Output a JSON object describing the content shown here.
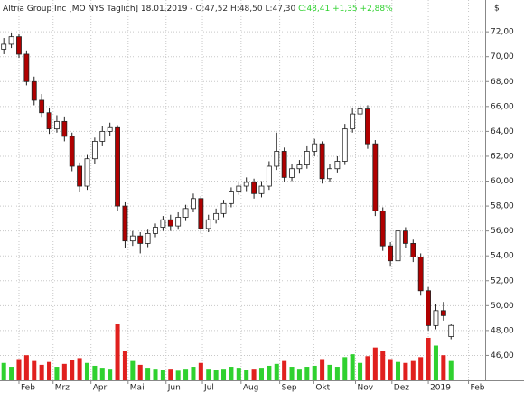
{
  "chart_data": {
    "type": "candlestick",
    "title": "Altria Group Inc [MO NYS  Täglich] 18.01.2019 -",
    "ohlc_label": "O:47,52 H:48,50 L:47,30",
    "change_label": "C:48,41 +1,35 +2,88%",
    "y_unit": "$",
    "up_color": "#2fd12f",
    "down_color": "#e0201e",
    "candle_up_color": "#ffffff",
    "candle_down_color": "#b00000",
    "open": [
      70.6,
      71.0,
      71.6,
      70.2,
      68.0,
      66.5,
      65.5,
      64.2,
      64.8,
      63.6,
      61.2,
      59.6,
      61.8,
      63.2,
      64.0,
      64.3,
      58.0,
      55.2,
      55.6,
      55.0,
      55.8,
      56.3,
      56.9,
      56.4,
      57.1,
      57.8,
      58.6,
      56.2,
      56.9,
      57.4,
      58.2,
      59.2,
      59.6,
      59.9,
      59.0,
      59.6,
      61.2,
      62.4,
      60.3,
      61.0,
      61.3,
      62.4,
      63.0,
      60.2,
      61.0,
      61.6,
      64.2,
      65.4,
      65.8,
      63.0,
      57.6,
      54.8,
      53.6,
      56.0,
      55.0,
      53.9,
      51.2,
      48.4,
      49.6,
      47.52
    ],
    "high": [
      71.5,
      71.9,
      71.8,
      70.5,
      68.4,
      67.0,
      65.9,
      65.3,
      65.2,
      63.9,
      61.5,
      62.1,
      63.5,
      64.4,
      64.7,
      64.5,
      58.3,
      56.0,
      55.9,
      56.1,
      56.6,
      57.2,
      57.3,
      57.5,
      58.1,
      59.0,
      58.8,
      57.3,
      57.8,
      58.5,
      59.5,
      60.0,
      60.3,
      60.2,
      60.0,
      61.6,
      63.9,
      62.7,
      61.4,
      61.7,
      62.8,
      63.4,
      63.2,
      61.4,
      62.0,
      64.6,
      65.9,
      66.2,
      66.1,
      63.3,
      57.9,
      55.1,
      56.4,
      56.3,
      55.3,
      54.2,
      51.5,
      50.1,
      50.3,
      48.5
    ],
    "low": [
      70.2,
      70.7,
      69.9,
      67.7,
      66.1,
      65.1,
      63.8,
      63.9,
      63.2,
      60.8,
      59.1,
      59.3,
      61.4,
      62.8,
      63.6,
      57.6,
      54.6,
      54.8,
      54.2,
      54.7,
      55.5,
      56.0,
      56.0,
      56.1,
      56.8,
      57.5,
      55.8,
      55.9,
      56.6,
      57.1,
      57.9,
      58.9,
      59.2,
      58.6,
      58.7,
      59.3,
      60.9,
      59.9,
      60.0,
      60.6,
      61.0,
      62.0,
      59.8,
      59.9,
      60.7,
      61.3,
      63.9,
      65.0,
      62.6,
      57.2,
      54.4,
      53.2,
      53.3,
      54.6,
      53.5,
      50.8,
      48.0,
      48.1,
      48.8,
      47.3
    ],
    "close": [
      71.0,
      71.6,
      70.2,
      68.0,
      66.5,
      65.5,
      64.2,
      64.8,
      63.6,
      61.2,
      59.6,
      61.8,
      63.2,
      64.0,
      64.3,
      58.0,
      55.2,
      55.6,
      55.0,
      55.8,
      56.3,
      56.9,
      56.4,
      57.1,
      57.8,
      58.6,
      56.2,
      56.9,
      57.4,
      58.2,
      59.2,
      59.6,
      59.9,
      59.0,
      59.6,
      61.2,
      62.4,
      60.3,
      61.0,
      61.3,
      62.4,
      63.0,
      60.2,
      61.0,
      61.6,
      64.2,
      65.4,
      65.8,
      63.0,
      57.6,
      54.8,
      53.6,
      56.0,
      55.0,
      53.9,
      51.2,
      48.4,
      49.6,
      49.2,
      48.41
    ],
    "volume": [
      18,
      14,
      22,
      26,
      20,
      16,
      19,
      14,
      17,
      21,
      23,
      18,
      15,
      13,
      12,
      58,
      30,
      20,
      16,
      13,
      12,
      11,
      12,
      10,
      12,
      14,
      18,
      12,
      11,
      12,
      14,
      13,
      11,
      12,
      13,
      15,
      17,
      20,
      14,
      12,
      14,
      15,
      22,
      16,
      14,
      24,
      27,
      18,
      25,
      34,
      30,
      22,
      19,
      18,
      20,
      24,
      44,
      36,
      26,
      20
    ],
    "xlim": [
      -0.5,
      63.5
    ],
    "ylim": [
      44.0,
      73.1
    ],
    "xticks": [
      {
        "value": 2.0,
        "label": "Feb"
      },
      {
        "value": 6.5,
        "label": "Mrz"
      },
      {
        "value": 11.5,
        "label": "Apr"
      },
      {
        "value": 16.4,
        "label": "Mai"
      },
      {
        "value": 21.4,
        "label": "Jun"
      },
      {
        "value": 26.2,
        "label": "Jul"
      },
      {
        "value": 31.3,
        "label": "Aug"
      },
      {
        "value": 36.4,
        "label": "Sep"
      },
      {
        "value": 40.9,
        "label": "Okt"
      },
      {
        "value": 46.4,
        "label": "Nov"
      },
      {
        "value": 51.2,
        "label": "Dez"
      },
      {
        "value": 56.0,
        "label": "2019"
      },
      {
        "value": 61.3,
        "label": "Feb"
      }
    ],
    "yticks": [
      {
        "value": 46,
        "label": "46,00"
      },
      {
        "value": 48,
        "label": "48,00"
      },
      {
        "value": 50,
        "label": "50,00"
      },
      {
        "value": 52,
        "label": "52,00"
      },
      {
        "value": 54,
        "label": "54,00"
      },
      {
        "value": 56,
        "label": "56,00"
      },
      {
        "value": 58,
        "label": "58,00"
      },
      {
        "value": 60,
        "label": "60,00"
      },
      {
        "value": 62,
        "label": "62,00"
      },
      {
        "value": 64,
        "label": "64,00"
      },
      {
        "value": 66,
        "label": "66,00"
      },
      {
        "value": 68,
        "label": "68,00"
      },
      {
        "value": 70,
        "label": "70,00"
      },
      {
        "value": 72,
        "label": "72,00"
      }
    ],
    "grid": true
  }
}
